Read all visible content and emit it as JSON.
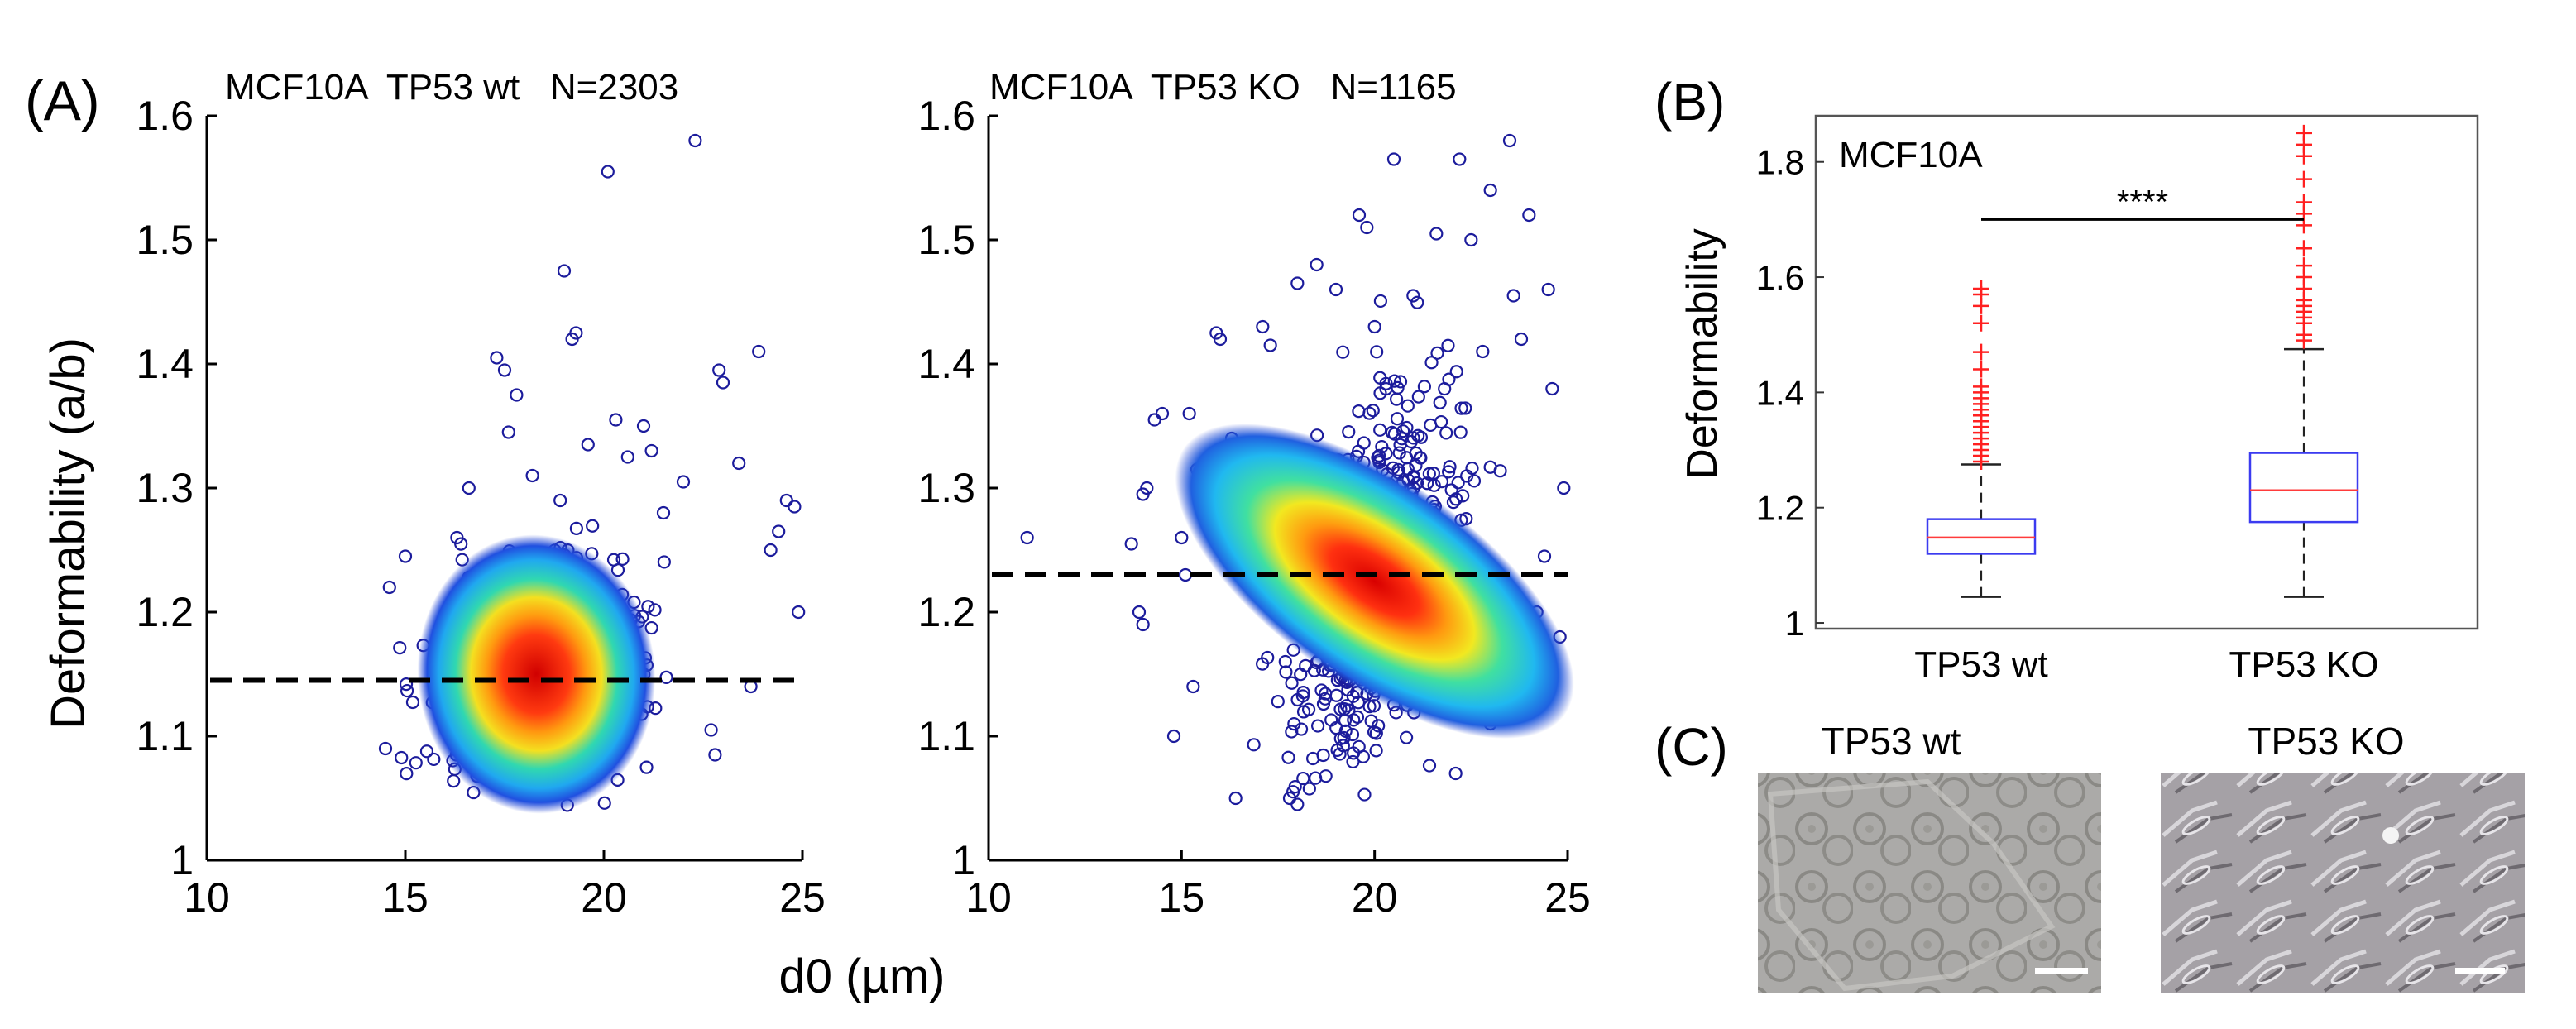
{
  "panel_labels": {
    "a": "(A)",
    "b": "(B)",
    "c": "(C)"
  },
  "shared_xlabel": "d0 (µm)",
  "colors": {
    "scatter_edge": "#1c1c9c",
    "density_hot": "#e01010",
    "density_warm": "#f4e020",
    "density_mid": "#20c8c8",
    "density_cool": "#2060e8",
    "median_line": "#000000",
    "box": "#3b3bf0",
    "median": "#ff3b3b",
    "outlier": "#ff2020",
    "micrograph_wt": "#a9a9a7",
    "micrograph_ko": "#a29ea2",
    "scale_bar": "#ffffff"
  },
  "micrographs": {
    "wt_title": "TP53 wt",
    "ko_title": "TP53 KO"
  },
  "chart_data": [
    {
      "type": "scatter",
      "panel": "A-left",
      "title": "MCF10A  TP53 wt   N=2303",
      "xlabel": "d0 (µm)",
      "ylabel": "Deformability (a/b)",
      "xlim": [
        10,
        25
      ],
      "ylim": [
        1,
        1.6
      ],
      "xticks": [
        10,
        15,
        20,
        25
      ],
      "yticks": [
        1,
        1.1,
        1.2,
        1.3,
        1.4,
        1.5,
        1.6
      ],
      "grid": false,
      "median_line": 1.145,
      "density_center": [
        18.3,
        1.15
      ],
      "outliers": [
        [
          22.3,
          1.58
        ],
        [
          20.1,
          1.555
        ],
        [
          19.0,
          1.475
        ],
        [
          19.3,
          1.425
        ],
        [
          19.2,
          1.42
        ],
        [
          17.3,
          1.405
        ],
        [
          17.5,
          1.395
        ],
        [
          17.8,
          1.375
        ],
        [
          22.9,
          1.395
        ],
        [
          23.0,
          1.385
        ],
        [
          23.9,
          1.41
        ],
        [
          17.6,
          1.345
        ],
        [
          20.3,
          1.355
        ],
        [
          21.0,
          1.35
        ],
        [
          20.6,
          1.325
        ],
        [
          24.6,
          1.29
        ],
        [
          24.8,
          1.285
        ],
        [
          16.6,
          1.3
        ],
        [
          24.2,
          1.25
        ],
        [
          14.6,
          1.22
        ],
        [
          24.9,
          1.2
        ],
        [
          14.5,
          1.09
        ],
        [
          22.8,
          1.085
        ],
        [
          22.0,
          1.305
        ],
        [
          23.4,
          1.32
        ],
        [
          21.5,
          1.28
        ],
        [
          15.0,
          1.245
        ],
        [
          24.4,
          1.265
        ],
        [
          22.7,
          1.105
        ],
        [
          23.7,
          1.14
        ],
        [
          18.9,
          1.29
        ],
        [
          18.2,
          1.31
        ],
        [
          21.2,
          1.33
        ],
        [
          19.6,
          1.335
        ],
        [
          16.3,
          1.26
        ]
      ]
    },
    {
      "type": "scatter",
      "panel": "A-right",
      "title": "MCF10A  TP53 KO   N=1165",
      "xlabel": "",
      "ylabel": "",
      "xlim": [
        10,
        25
      ],
      "ylim": [
        1,
        1.6
      ],
      "xticks": [
        10,
        15,
        20,
        25
      ],
      "yticks": [
        1,
        1.1,
        1.2,
        1.3,
        1.4,
        1.5,
        1.6
      ],
      "grid": false,
      "median_line": 1.23,
      "density_center": [
        20.0,
        1.225
      ],
      "outliers": [
        [
          23.5,
          1.58
        ],
        [
          22.2,
          1.565
        ],
        [
          20.5,
          1.565
        ],
        [
          23.0,
          1.54
        ],
        [
          24.0,
          1.52
        ],
        [
          19.6,
          1.52
        ],
        [
          19.8,
          1.51
        ],
        [
          18.5,
          1.48
        ],
        [
          21.6,
          1.505
        ],
        [
          22.5,
          1.5
        ],
        [
          18.0,
          1.465
        ],
        [
          23.6,
          1.455
        ],
        [
          24.5,
          1.46
        ],
        [
          17.1,
          1.43
        ],
        [
          17.3,
          1.415
        ],
        [
          15.9,
          1.425
        ],
        [
          16.0,
          1.42
        ],
        [
          14.5,
          1.36
        ],
        [
          14.3,
          1.355
        ],
        [
          11.0,
          1.26
        ],
        [
          14.1,
          1.3
        ],
        [
          14.0,
          1.295
        ],
        [
          13.9,
          1.2
        ],
        [
          15.2,
          1.36
        ],
        [
          15.4,
          1.315
        ],
        [
          13.7,
          1.255
        ],
        [
          15.0,
          1.26
        ],
        [
          16.1,
          1.31
        ],
        [
          16.3,
          1.34
        ],
        [
          15.1,
          1.23
        ],
        [
          14.0,
          1.19
        ],
        [
          15.3,
          1.14
        ],
        [
          16.4,
          1.05
        ],
        [
          17.8,
          1.05
        ],
        [
          18.0,
          1.045
        ],
        [
          24.6,
          1.38
        ],
        [
          24.9,
          1.3
        ],
        [
          24.4,
          1.245
        ],
        [
          24.8,
          1.18
        ],
        [
          24.2,
          1.2
        ],
        [
          22.1,
          1.07
        ],
        [
          23.0,
          1.11
        ],
        [
          24.0,
          1.16
        ],
        [
          23.8,
          1.42
        ],
        [
          22.8,
          1.41
        ],
        [
          21.0,
          1.455
        ],
        [
          20.0,
          1.43
        ],
        [
          19.0,
          1.46
        ],
        [
          14.8,
          1.1
        ]
      ]
    },
    {
      "type": "box",
      "panel": "B",
      "title": "MCF10A",
      "xlabel": "",
      "ylabel": "Deformability",
      "ylim": [
        0.99,
        1.88
      ],
      "yticks": [
        1,
        1.2,
        1.4,
        1.6,
        1.8
      ],
      "categories": [
        "TP53 wt",
        "TP53 KO"
      ],
      "boxes": [
        {
          "name": "TP53 wt",
          "whisker_low": 1.045,
          "q1": 1.12,
          "median": 1.148,
          "q3": 1.18,
          "whisker_high": 1.275,
          "outliers": [
            1.28,
            1.29,
            1.3,
            1.31,
            1.32,
            1.33,
            1.34,
            1.35,
            1.36,
            1.37,
            1.38,
            1.39,
            1.4,
            1.41,
            1.44,
            1.47,
            1.52,
            1.55,
            1.57,
            1.58
          ]
        },
        {
          "name": "TP53 KO",
          "whisker_low": 1.045,
          "q1": 1.175,
          "median": 1.23,
          "q3": 1.295,
          "whisker_high": 1.475,
          "outliers": [
            1.49,
            1.5,
            1.52,
            1.53,
            1.54,
            1.55,
            1.56,
            1.58,
            1.6,
            1.62,
            1.65,
            1.69,
            1.71,
            1.73,
            1.77,
            1.81,
            1.83,
            1.85
          ]
        }
      ],
      "significance": {
        "label": "****",
        "y": 1.7
      }
    }
  ]
}
